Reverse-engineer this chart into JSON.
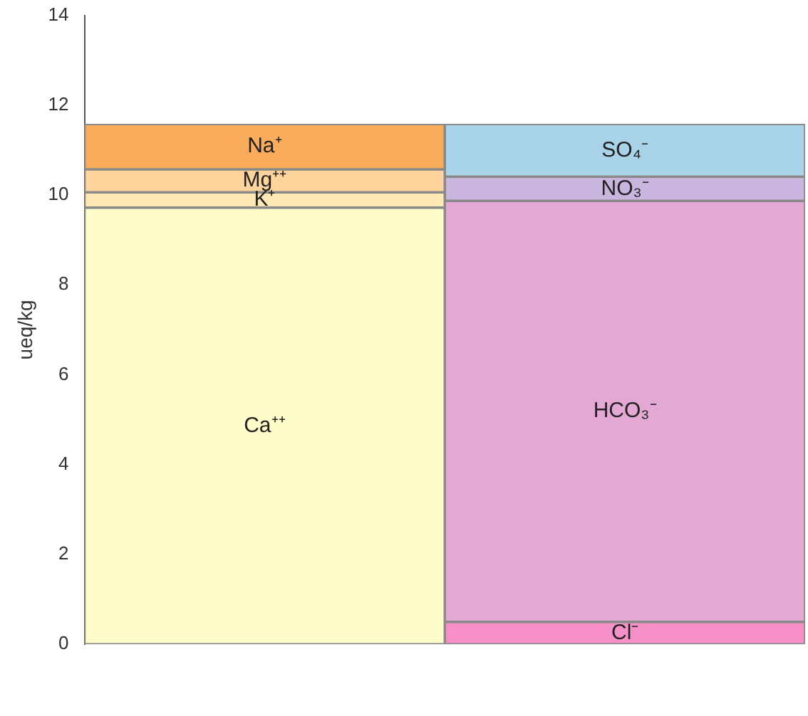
{
  "chart_data": {
    "type": "bar",
    "stacked": true,
    "ylabel": "ueq/kg",
    "categories": [
      null,
      null
    ],
    "ylim": [
      0,
      14
    ],
    "yticks": [
      0,
      2,
      4,
      6,
      8,
      10,
      12,
      14
    ],
    "grid": false,
    "legend": false,
    "series": [
      {
        "name": "Ca⁺⁺",
        "color": "#fefdc9",
        "values": [
          9.72,
          null
        ]
      },
      {
        "name": "K⁺",
        "color": "#fee8b4",
        "values": [
          0.34,
          null
        ]
      },
      {
        "name": "Mg⁺⁺",
        "color": "#fdd49c",
        "values": [
          0.51,
          null
        ]
      },
      {
        "name": "Na⁺",
        "color": "#f9ac5c",
        "values": [
          1.01,
          null
        ]
      },
      {
        "name": "Cl⁻",
        "color": "#f78fc8",
        "values": [
          null,
          0.5
        ]
      },
      {
        "name": "HCO₃⁻",
        "color": "#e3a9d4",
        "values": [
          null,
          9.37
        ]
      },
      {
        "name": "NO₃⁻",
        "color": "#c9b5dd",
        "values": [
          null,
          0.54
        ]
      },
      {
        "name": "SO₄⁻",
        "color": "#a9d3e8",
        "values": [
          null,
          1.17
        ]
      }
    ]
  }
}
